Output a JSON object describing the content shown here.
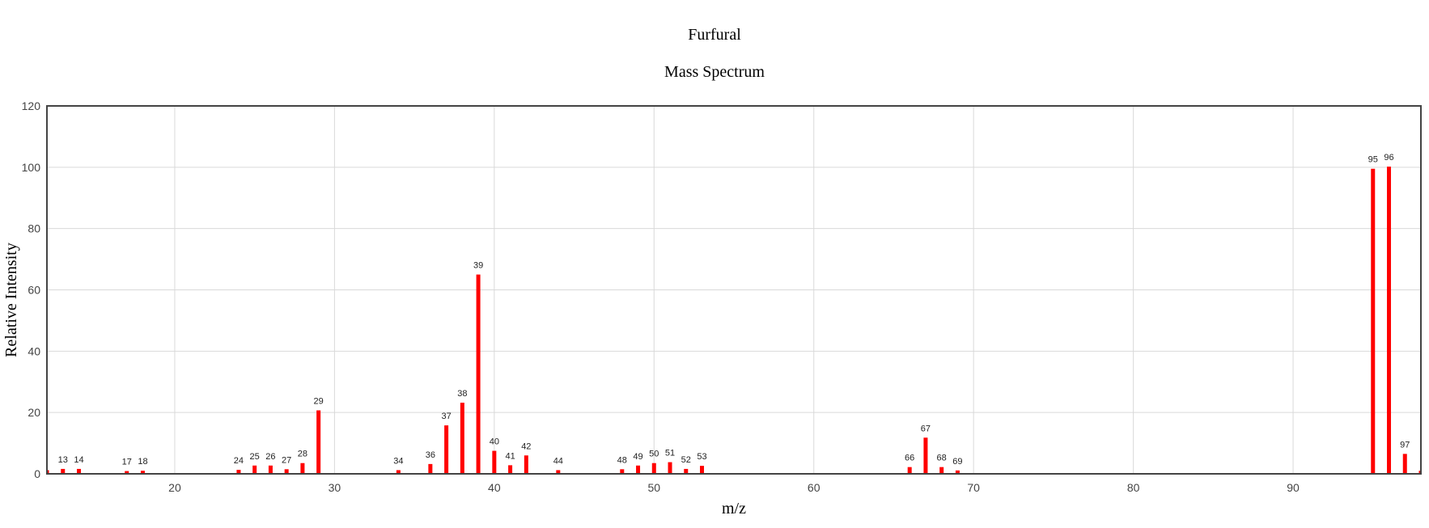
{
  "chart_data": {
    "type": "bar",
    "title": "Furfural",
    "subtitle": "Mass Spectrum",
    "xlabel": "m/z",
    "ylabel": "Relative Intensity",
    "xlim": [
      12,
      98
    ],
    "ylim": [
      0,
      120
    ],
    "xticks": [
      20,
      30,
      40,
      50,
      60,
      70,
      80,
      90
    ],
    "yticks": [
      0,
      20,
      40,
      60,
      80,
      100,
      120
    ],
    "grid": true,
    "bar_color": "#ff0000",
    "peaks": [
      {
        "mz": 12,
        "intensity": 1.2,
        "label": ""
      },
      {
        "mz": 13,
        "intensity": 1.6,
        "label": "13"
      },
      {
        "mz": 14,
        "intensity": 1.6,
        "label": "14"
      },
      {
        "mz": 17,
        "intensity": 0.9,
        "label": "17"
      },
      {
        "mz": 18,
        "intensity": 1.0,
        "label": "18"
      },
      {
        "mz": 24,
        "intensity": 1.3,
        "label": "24"
      },
      {
        "mz": 25,
        "intensity": 2.7,
        "label": "25"
      },
      {
        "mz": 26,
        "intensity": 2.7,
        "label": "26"
      },
      {
        "mz": 27,
        "intensity": 1.5,
        "label": "27"
      },
      {
        "mz": 28,
        "intensity": 3.5,
        "label": "28"
      },
      {
        "mz": 29,
        "intensity": 20.7,
        "label": "29"
      },
      {
        "mz": 34,
        "intensity": 1.2,
        "label": "34"
      },
      {
        "mz": 36,
        "intensity": 3.2,
        "label": "36"
      },
      {
        "mz": 37,
        "intensity": 15.8,
        "label": "37"
      },
      {
        "mz": 38,
        "intensity": 23.2,
        "label": "38"
      },
      {
        "mz": 39,
        "intensity": 65.0,
        "label": "39"
      },
      {
        "mz": 40,
        "intensity": 7.5,
        "label": "40"
      },
      {
        "mz": 41,
        "intensity": 2.8,
        "label": "41"
      },
      {
        "mz": 42,
        "intensity": 6.0,
        "label": "42"
      },
      {
        "mz": 44,
        "intensity": 1.2,
        "label": "44"
      },
      {
        "mz": 48,
        "intensity": 1.5,
        "label": "48"
      },
      {
        "mz": 49,
        "intensity": 2.7,
        "label": "49"
      },
      {
        "mz": 50,
        "intensity": 3.5,
        "label": "50"
      },
      {
        "mz": 51,
        "intensity": 3.8,
        "label": "51"
      },
      {
        "mz": 52,
        "intensity": 1.6,
        "label": "52"
      },
      {
        "mz": 53,
        "intensity": 2.6,
        "label": "53"
      },
      {
        "mz": 66,
        "intensity": 2.2,
        "label": "66"
      },
      {
        "mz": 67,
        "intensity": 11.8,
        "label": "67"
      },
      {
        "mz": 68,
        "intensity": 2.2,
        "label": "68"
      },
      {
        "mz": 69,
        "intensity": 1.1,
        "label": "69"
      },
      {
        "mz": 95,
        "intensity": 99.5,
        "label": "95"
      },
      {
        "mz": 96,
        "intensity": 100.2,
        "label": "96"
      },
      {
        "mz": 97,
        "intensity": 6.5,
        "label": "97"
      },
      {
        "mz": 98,
        "intensity": 1.0,
        "label": ""
      }
    ]
  }
}
